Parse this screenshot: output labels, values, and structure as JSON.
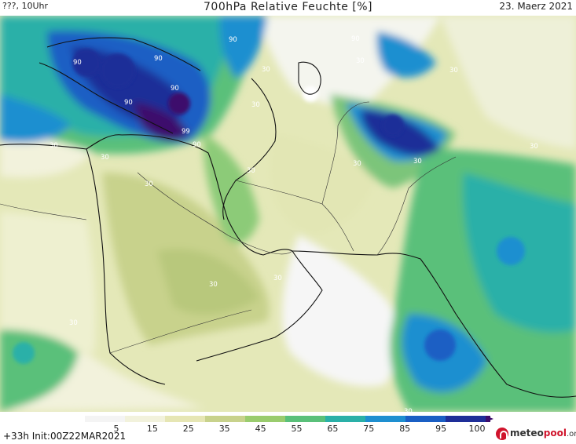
{
  "header": {
    "left": "???, 10Uhr",
    "title": "700hPa Relative Feuchte [%]",
    "date": "23. Maerz 2021"
  },
  "footer": {
    "run_info": "+33h Init:00Z22MAR2021",
    "brand_prefix": "meteo",
    "brand_accent": "pool",
    "brand_tld": ".org"
  },
  "colorbar": {
    "labels": [
      "5",
      "15",
      "25",
      "35",
      "45",
      "55",
      "65",
      "75",
      "85",
      "95",
      "100"
    ],
    "colors": [
      "#f4f4f4",
      "#f2f2dc",
      "#e6e6b4",
      "#c8d28c",
      "#9acc6e",
      "#5ac07a",
      "#2ab0a8",
      "#1e8fd0",
      "#1a5fc4",
      "#1e2e98",
      "#3c0c6c"
    ]
  },
  "contour_labels": [
    "90",
    "90",
    "90",
    "30",
    "30",
    "90",
    "30",
    "90",
    "30",
    "90",
    "99",
    "90",
    "30",
    "30",
    "30",
    "30",
    "30",
    "30",
    "30",
    "30",
    "30",
    "30",
    "30"
  ]
}
